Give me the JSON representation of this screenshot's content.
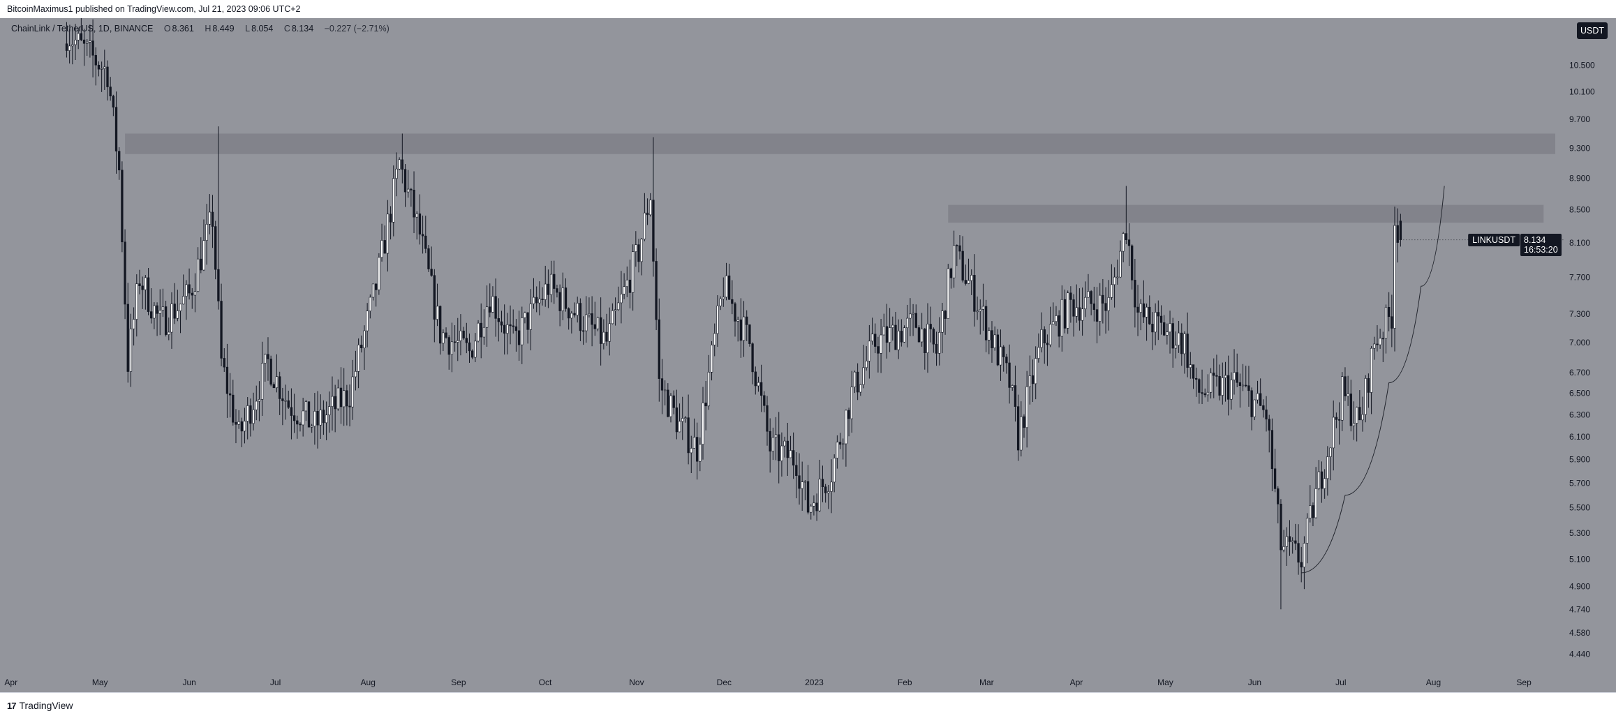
{
  "header": {
    "publish_text": "BitcoinMaximus1 published on TradingView.com, Jul 21, 2023 09:06 UTC+2"
  },
  "legend": {
    "symbol": "ChainLink / TetherUS, 1D, BINANCE",
    "o_label": "O",
    "o_value": "8.361",
    "h_label": "H",
    "h_value": "8.449",
    "l_label": "L",
    "l_value": "8.054",
    "c_label": "C",
    "c_value": "8.134",
    "change": "−0.227 (−2.71%)"
  },
  "currency": "USDT",
  "last_price": {
    "symbol": "LINKUSDT",
    "value": "8.134",
    "countdown": "16:53:20"
  },
  "footer": {
    "logo": "17",
    "brand": "TradingView"
  },
  "colors": {
    "background": "#93959c",
    "candle": "#131722",
    "zone": "#7c7e85",
    "axis_text": "#131722"
  },
  "chart_data": {
    "type": "candlestick",
    "symbol": "LINKUSDT",
    "timeframe": "1D",
    "exchange": "BINANCE",
    "x_axis": {
      "ticks": [
        "Apr",
        "May",
        "Jun",
        "Jul",
        "Aug",
        "Sep",
        "Oct",
        "Nov",
        "Dec",
        "2023",
        "Feb",
        "Mar",
        "Apr",
        "May",
        "Jun",
        "Jul",
        "Aug",
        "Sep"
      ],
      "tick_dates": [
        "2022-04-01",
        "2022-05-01",
        "2022-06-01",
        "2022-07-01",
        "2022-08-01",
        "2022-09-01",
        "2022-10-01",
        "2022-11-01",
        "2022-12-01",
        "2023-01-01",
        "2023-02-01",
        "2023-03-01",
        "2023-04-01",
        "2023-05-01",
        "2023-06-01",
        "2023-07-01",
        "2023-08-01",
        "2023-09-01"
      ],
      "range": [
        "2022-04-01",
        "2023-09-12"
      ]
    },
    "y_axis": {
      "scale": "log",
      "ticks": [
        "10.500",
        "10.100",
        "9.700",
        "9.300",
        "8.900",
        "8.500",
        "8.100",
        "7.700",
        "7.300",
        "7.000",
        "6.700",
        "6.500",
        "6.300",
        "6.100",
        "5.900",
        "5.700",
        "5.500",
        "5.300",
        "5.100",
        "4.900",
        "4.740",
        "4.580",
        "4.440"
      ],
      "range": [
        4.33,
        11.2
      ]
    },
    "resistance_zones": [
      {
        "from_date": "2022-05-10",
        "to_date": "2023-09-12",
        "low": 9.22,
        "high": 9.5
      },
      {
        "from_date": "2023-02-16",
        "to_date": "2023-09-08",
        "low": 8.34,
        "high": 8.56
      }
    ],
    "support_curve": {
      "points": [
        {
          "date": "2023-06-17",
          "price": 5.0
        },
        {
          "date": "2023-07-02",
          "price": 5.6
        },
        {
          "date": "2023-07-17",
          "price": 6.6
        },
        {
          "date": "2023-07-28",
          "price": 7.6
        },
        {
          "date": "2023-08-05",
          "price": 8.8
        }
      ]
    },
    "anchors": [
      {
        "date": "2022-04-20",
        "price": 11.0
      },
      {
        "date": "2022-05-04",
        "price": 10.4
      },
      {
        "date": "2022-05-08",
        "price": 9.0
      },
      {
        "date": "2022-05-11",
        "price": 6.8
      },
      {
        "date": "2022-05-15",
        "price": 7.7
      },
      {
        "date": "2022-05-22",
        "price": 7.2
      },
      {
        "date": "2022-06-01",
        "price": 7.5
      },
      {
        "date": "2022-06-09",
        "price": 8.4
      },
      {
        "date": "2022-06-12",
        "price": 6.8
      },
      {
        "date": "2022-06-18",
        "price": 6.1
      },
      {
        "date": "2022-06-28",
        "price": 6.8
      },
      {
        "date": "2022-07-05",
        "price": 6.4
      },
      {
        "date": "2022-07-14",
        "price": 6.2
      },
      {
        "date": "2022-07-26",
        "price": 6.5
      },
      {
        "date": "2022-08-04",
        "price": 7.6
      },
      {
        "date": "2022-08-12",
        "price": 9.1
      },
      {
        "date": "2022-08-19",
        "price": 8.2
      },
      {
        "date": "2022-08-26",
        "price": 7.1
      },
      {
        "date": "2022-09-05",
        "price": 6.9
      },
      {
        "date": "2022-09-12",
        "price": 7.5
      },
      {
        "date": "2022-09-20",
        "price": 7.0
      },
      {
        "date": "2022-10-02",
        "price": 7.6
      },
      {
        "date": "2022-10-15",
        "price": 7.2
      },
      {
        "date": "2022-10-22",
        "price": 7.0
      },
      {
        "date": "2022-11-02",
        "price": 8.0
      },
      {
        "date": "2022-11-06",
        "price": 8.7
      },
      {
        "date": "2022-11-09",
        "price": 6.6
      },
      {
        "date": "2022-11-16",
        "price": 6.2
      },
      {
        "date": "2022-11-22",
        "price": 6.0
      },
      {
        "date": "2022-12-01",
        "price": 7.6
      },
      {
        "date": "2022-12-10",
        "price": 7.0
      },
      {
        "date": "2022-12-17",
        "price": 6.0
      },
      {
        "date": "2022-12-26",
        "price": 5.9
      },
      {
        "date": "2022-12-30",
        "price": 5.5
      },
      {
        "date": "2023-01-07",
        "price": 5.8
      },
      {
        "date": "2023-01-14",
        "price": 6.5
      },
      {
        "date": "2023-01-22",
        "price": 7.0
      },
      {
        "date": "2023-02-05",
        "price": 7.2
      },
      {
        "date": "2023-02-12",
        "price": 6.9
      },
      {
        "date": "2023-02-18",
        "price": 8.0
      },
      {
        "date": "2023-02-25",
        "price": 7.5
      },
      {
        "date": "2023-03-09",
        "price": 6.6
      },
      {
        "date": "2023-03-12",
        "price": 6.1
      },
      {
        "date": "2023-03-20",
        "price": 7.0
      },
      {
        "date": "2023-03-30",
        "price": 7.4
      },
      {
        "date": "2023-04-12",
        "price": 7.4
      },
      {
        "date": "2023-04-18",
        "price": 8.3
      },
      {
        "date": "2023-04-22",
        "price": 7.3
      },
      {
        "date": "2023-05-08",
        "price": 7.0
      },
      {
        "date": "2023-05-12",
        "price": 6.5
      },
      {
        "date": "2023-05-25",
        "price": 6.6
      },
      {
        "date": "2023-06-05",
        "price": 6.3
      },
      {
        "date": "2023-06-10",
        "price": 5.2
      },
      {
        "date": "2023-06-17",
        "price": 5.1
      },
      {
        "date": "2023-06-22",
        "price": 5.6
      },
      {
        "date": "2023-07-01",
        "price": 6.5
      },
      {
        "date": "2023-07-07",
        "price": 6.2
      },
      {
        "date": "2023-07-12",
        "price": 7.0
      },
      {
        "date": "2023-07-18",
        "price": 7.3
      },
      {
        "date": "2023-07-19",
        "price": 8.4
      },
      {
        "date": "2023-07-21",
        "price": 8.134
      }
    ],
    "annotated_points": [
      {
        "date": "2022-06-11",
        "price": 9.6,
        "kind": "high"
      },
      {
        "date": "2022-08-13",
        "price": 9.5,
        "kind": "high"
      },
      {
        "date": "2022-11-07",
        "price": 9.45,
        "kind": "high"
      },
      {
        "date": "2023-04-18",
        "price": 8.8,
        "kind": "high"
      },
      {
        "date": "2023-06-10",
        "price": 4.74,
        "kind": "low"
      }
    ],
    "last_candle": {
      "date": "2023-07-21",
      "open": 8.361,
      "high": 8.449,
      "low": 8.054,
      "close": 8.134,
      "change": -0.227,
      "change_pct": -2.71
    }
  }
}
